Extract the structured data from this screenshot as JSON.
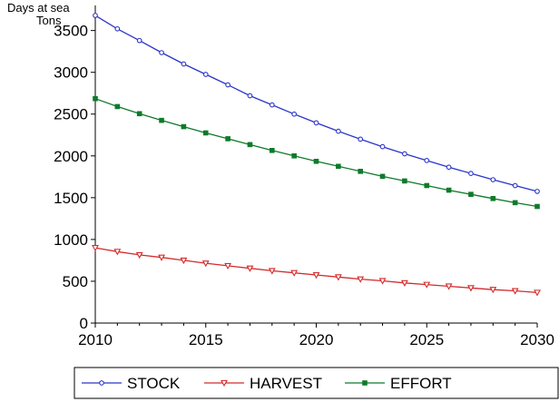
{
  "chart_data": {
    "type": "line",
    "unit_labels": [
      "Days at sea",
      "Tons"
    ],
    "x": [
      2010,
      2011,
      2012,
      2013,
      2014,
      2015,
      2016,
      2017,
      2018,
      2019,
      2020,
      2021,
      2022,
      2023,
      2024,
      2025,
      2026,
      2027,
      2028,
      2029,
      2030
    ],
    "xlim": [
      2010,
      2030
    ],
    "x_ticks": [
      2010,
      2015,
      2020,
      2025,
      2030
    ],
    "ylim": [
      0,
      3800
    ],
    "y_ticks": [
      0,
      500,
      1000,
      1500,
      2000,
      2500,
      3000,
      3500
    ],
    "legend_position": "bottom",
    "grid": false,
    "series": [
      {
        "name": "STOCK",
        "color": "#2b35c8",
        "marker": "circle",
        "values": [
          3680,
          3520,
          3380,
          3235,
          3100,
          2975,
          2850,
          2720,
          2610,
          2500,
          2395,
          2295,
          2200,
          2110,
          2025,
          1945,
          1865,
          1790,
          1715,
          1645,
          1575
        ]
      },
      {
        "name": "HARVEST",
        "color": "#d42b2b",
        "marker": "triangle-down",
        "values": [
          900,
          855,
          815,
          785,
          750,
          715,
          685,
          655,
          625,
          600,
          575,
          550,
          525,
          505,
          480,
          460,
          440,
          420,
          400,
          385,
          365
        ]
      },
      {
        "name": "EFFORT",
        "color": "#0e7a2a",
        "marker": "square",
        "values": [
          2685,
          2590,
          2505,
          2425,
          2350,
          2275,
          2205,
          2135,
          2065,
          2000,
          1935,
          1875,
          1815,
          1755,
          1700,
          1645,
          1590,
          1540,
          1490,
          1440,
          1395
        ]
      }
    ]
  }
}
